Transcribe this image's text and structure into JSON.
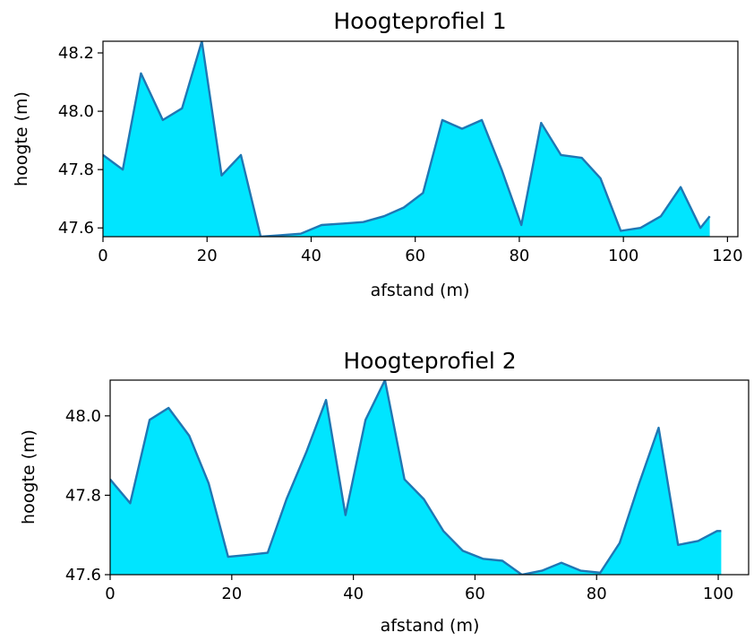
{
  "chart_data": [
    {
      "type": "area",
      "title": "Hoogteprofiel 1",
      "xlabel": "afstand (m)",
      "ylabel": "hoogte (m)",
      "xlim": [
        0,
        122
      ],
      "ylim": [
        47.57,
        48.24
      ],
      "xticks": [
        0,
        20,
        40,
        60,
        80,
        100,
        120
      ],
      "xtick_labels": [
        "0",
        "20",
        "40",
        "60",
        "80",
        "100",
        "120"
      ],
      "yticks": [
        47.6,
        47.8,
        48.0,
        48.2
      ],
      "ytick_labels": [
        "47.6",
        "47.8",
        "48.0",
        "48.2"
      ],
      "grid": false,
      "fill_color": "#00e5ff",
      "line_color": "#1f77b4",
      "x": [
        0,
        3.8,
        7.3,
        11.5,
        15.2,
        19.0,
        22.8,
        26.5,
        30.3,
        34.0,
        38.0,
        42.0,
        46.0,
        50.0,
        54.0,
        57.8,
        61.5,
        65.2,
        69.0,
        72.8,
        76.6,
        80.4,
        84.2,
        88.0,
        92.0,
        95.6,
        99.5,
        103.3,
        107.2,
        111.0,
        114.8,
        116.6
      ],
      "y": [
        47.85,
        47.8,
        48.13,
        47.97,
        48.01,
        48.24,
        47.78,
        47.85,
        47.57,
        47.575,
        47.58,
        47.61,
        47.615,
        47.62,
        47.64,
        47.67,
        47.72,
        47.97,
        47.94,
        47.97,
        47.8,
        47.61,
        47.96,
        47.85,
        47.84,
        47.77,
        47.59,
        47.6,
        47.64,
        47.74,
        47.6,
        47.64
      ]
    },
    {
      "type": "area",
      "title": "Hoogteprofiel 2",
      "xlabel": "afstand (m)",
      "ylabel": "hoogte (m)",
      "xlim": [
        0,
        105
      ],
      "ylim": [
        47.6,
        48.09
      ],
      "xticks": [
        0,
        20,
        40,
        60,
        80,
        100
      ],
      "xtick_labels": [
        "0",
        "20",
        "40",
        "60",
        "80",
        "100"
      ],
      "yticks": [
        47.6,
        47.8,
        48.0
      ],
      "ytick_labels": [
        "47.6",
        "47.8",
        "48.0"
      ],
      "grid": false,
      "fill_color": "#00e5ff",
      "line_color": "#1f77b4",
      "x": [
        0,
        3.3,
        6.5,
        9.6,
        13.0,
        16.2,
        19.4,
        22.7,
        25.9,
        29.0,
        32.3,
        35.5,
        38.7,
        42.0,
        45.2,
        48.4,
        51.6,
        54.8,
        58.0,
        61.3,
        64.5,
        67.7,
        71.0,
        74.2,
        77.4,
        80.6,
        83.8,
        87.0,
        90.2,
        93.4,
        96.7,
        99.8,
        100.5
      ],
      "y": [
        47.84,
        47.78,
        47.99,
        48.02,
        47.95,
        47.83,
        47.645,
        47.65,
        47.655,
        47.79,
        47.91,
        48.04,
        47.75,
        47.99,
        48.09,
        47.84,
        47.79,
        47.71,
        47.66,
        47.64,
        47.635,
        47.6,
        47.61,
        47.63,
        47.61,
        47.605,
        47.68,
        47.83,
        47.97,
        47.675,
        47.685,
        47.71,
        47.71
      ]
    }
  ]
}
